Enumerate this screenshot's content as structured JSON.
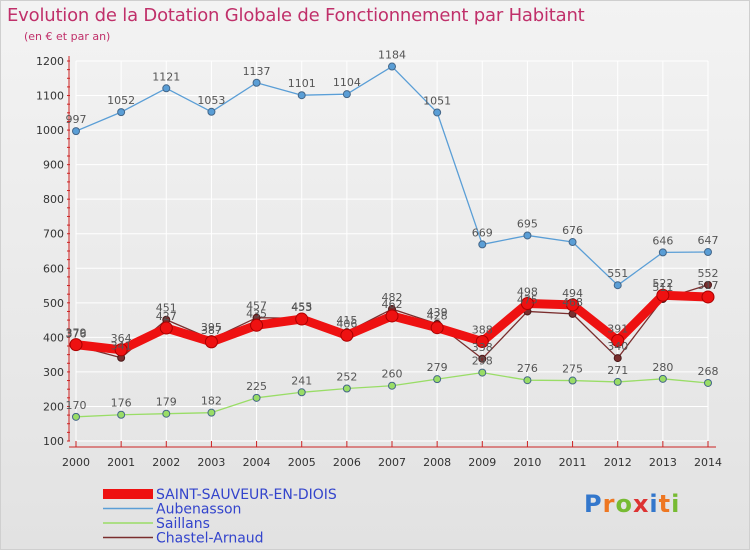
{
  "chart_data": {
    "type": "line",
    "title": "Evolution de la Dotation Globale de Fonctionnement par Habitant",
    "subtitle": "(en € et par an)",
    "x": [
      "2000",
      "2001",
      "2002",
      "2003",
      "2004",
      "2005",
      "2006",
      "2007",
      "2008",
      "2009",
      "2010",
      "2011",
      "2012",
      "2013",
      "2014"
    ],
    "y_ticks": [
      100,
      200,
      300,
      400,
      500,
      600,
      700,
      800,
      900,
      1000,
      1100,
      1200
    ],
    "ylim": [
      100,
      1200
    ],
    "series": [
      {
        "name": "SAINT-SAUVEUR-EN-DIOIS",
        "color": "#ee1111",
        "values": [
          379,
          364,
          427,
          387,
          435,
          453,
          406,
          462,
          428,
          388,
          498,
          494,
          391,
          522,
          517
        ],
        "labels": [
          "379",
          "364",
          "427",
          "387",
          "435",
          "453",
          "406",
          "462",
          "428",
          "388",
          "498",
          "494",
          "391",
          "522",
          "517"
        ]
      },
      {
        "name": "Aubenasson",
        "color": "#5a9ed6",
        "values": [
          997,
          1052,
          1121,
          1053,
          1137,
          1101,
          1104,
          1184,
          1051,
          669,
          695,
          676,
          551,
          646,
          647
        ],
        "labels": [
          "997",
          "1052",
          "1121",
          "1053",
          "1137",
          "1101",
          "1104",
          "1184",
          "1051",
          "669",
          "695",
          "676",
          "551",
          "646",
          "647"
        ]
      },
      {
        "name": "Saillans",
        "color": "#99dd66",
        "values": [
          170,
          176,
          179,
          182,
          225,
          241,
          252,
          260,
          279,
          298,
          276,
          275,
          271,
          280,
          268
        ],
        "labels": [
          "170",
          "176",
          "179",
          "182",
          "225",
          "241",
          "252",
          "260",
          "279",
          "298",
          "276",
          "275",
          "271",
          "280",
          "268"
        ]
      },
      {
        "name": "Chastel-Arnaud",
        "color": "#7a2e2e",
        "values": [
          376,
          341,
          451,
          395,
          457,
          455,
          415,
          482,
          439,
          338,
          475,
          468,
          340,
          511,
          552
        ],
        "labels": [
          "376",
          "341",
          "451",
          "395",
          "457",
          "455",
          "415",
          "482",
          "439",
          "338",
          "475",
          "468",
          "340",
          "511",
          "552"
        ]
      }
    ]
  },
  "logo": {
    "letters": [
      "P",
      "r",
      "o",
      "x",
      "i",
      "t",
      "i"
    ],
    "colors": [
      "#3377cc",
      "#ee7722",
      "#77bb33",
      "#dd3333",
      "#3377cc",
      "#ee7722",
      "#77bb33"
    ]
  }
}
